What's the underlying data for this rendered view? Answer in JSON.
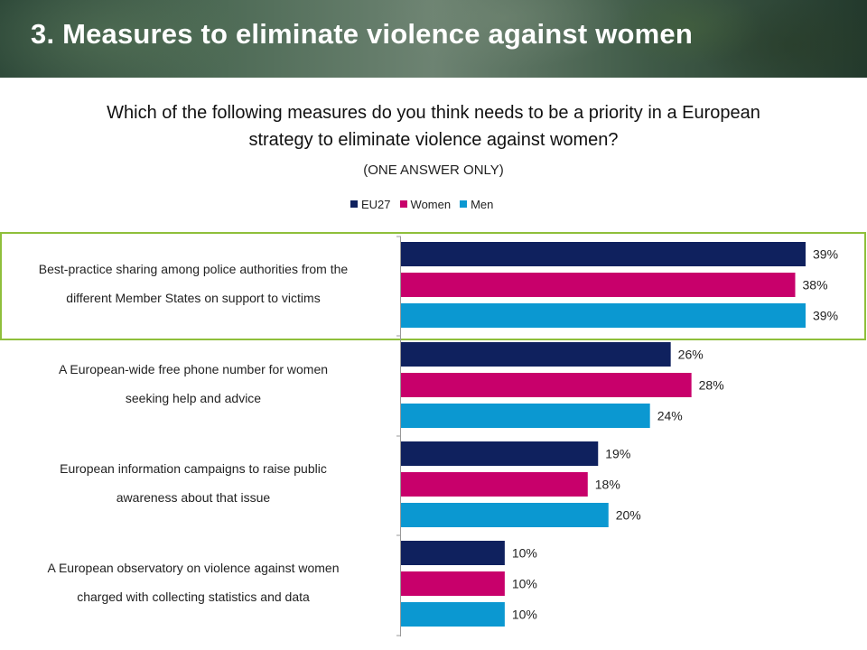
{
  "title": "3. Measures to eliminate violence against women",
  "question": "Which of the following measures do you think needs to be a priority in a European strategy to eliminate violence against women?",
  "instruction": "(ONE ANSWER ONLY)",
  "colors": {
    "eu27": "#0f215e",
    "women": "#c8006b",
    "men": "#0b98d1",
    "highlight_border": "#8fbf3b"
  },
  "chart_data": {
    "type": "bar",
    "orientation": "horizontal",
    "categories": [
      [
        "Best-practice sharing among police authorities from the",
        "different Member States on support to victims"
      ],
      [
        "A European-wide free phone number for women",
        "seeking help and advice"
      ],
      [
        "European information campaigns to raise public",
        "awareness about that issue"
      ],
      [
        "A European observatory on violence against women",
        "charged with collecting statistics and data"
      ]
    ],
    "series": [
      {
        "name": "EU27",
        "values": [
          39,
          26,
          19,
          10
        ]
      },
      {
        "name": "Women",
        "values": [
          38,
          28,
          18,
          10
        ]
      },
      {
        "name": "Men",
        "values": [
          39,
          24,
          20,
          10
        ]
      }
    ],
    "value_suffix": "%",
    "xlim": [
      0,
      39
    ],
    "legend_position": "top-center",
    "highlighted_category": 0,
    "grid": false
  }
}
